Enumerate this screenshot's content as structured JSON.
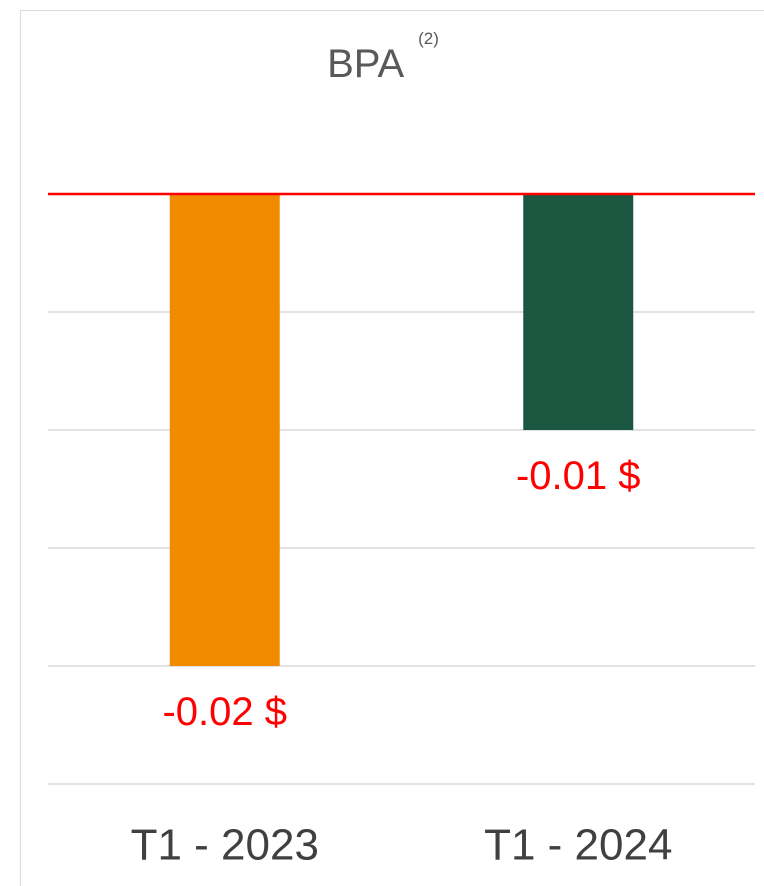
{
  "chart_data": {
    "type": "bar",
    "title": "BPA",
    "title_note": "(2)",
    "categories": [
      "T1 - 2023",
      "T1 - 2024"
    ],
    "values": [
      -0.02,
      -0.01
    ],
    "value_labels": [
      "-0.02 $",
      "-0.01 $"
    ],
    "colors": [
      "#f28a00",
      "#1a5640"
    ],
    "value_label_color": "#ff0000",
    "ylim": [
      -0.025,
      0
    ],
    "yticks": [
      0,
      -0.005,
      -0.01,
      -0.015,
      -0.02,
      -0.025
    ],
    "grid": true,
    "zero_line_color": "#ff0000"
  }
}
